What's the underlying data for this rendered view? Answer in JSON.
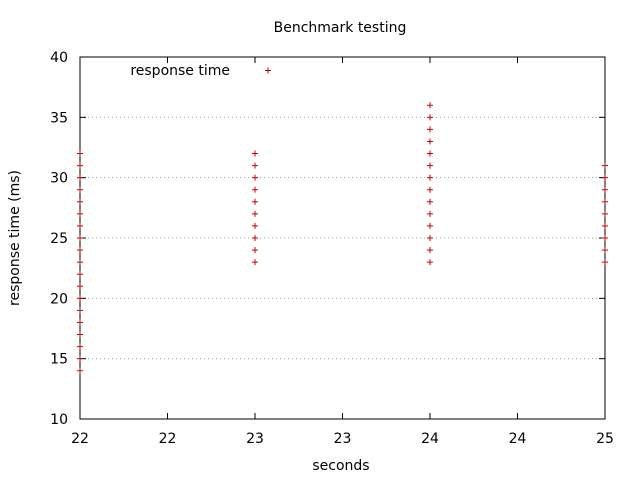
{
  "chart_data": {
    "type": "scatter",
    "title": "Benchmark testing",
    "xlabel": "seconds",
    "ylabel": "response time (ms)",
    "xlim": [
      22,
      25
    ],
    "ylim": [
      10,
      40
    ],
    "x_ticks": [
      22,
      22.5,
      23,
      23.5,
      24,
      24.5,
      25
    ],
    "x_tick_labels": [
      "22",
      "22",
      "23",
      "23",
      "24",
      "24",
      "25"
    ],
    "y_ticks": [
      10,
      15,
      20,
      25,
      30,
      35,
      40
    ],
    "y_tick_labels": [
      "10",
      "15",
      "20",
      "25",
      "30",
      "35",
      "40"
    ],
    "grid": "horizontal-dotted",
    "legend_position": "top-left",
    "marker": "+",
    "colors": {
      "series": "#cc0000",
      "grid": "#a0a0a0",
      "axis": "#000000"
    },
    "series": [
      {
        "name": "response time",
        "points": [
          [
            22,
            14
          ],
          [
            22,
            15
          ],
          [
            22,
            16
          ],
          [
            22,
            17
          ],
          [
            22,
            18
          ],
          [
            22,
            19
          ],
          [
            22,
            20
          ],
          [
            22,
            21
          ],
          [
            22,
            22
          ],
          [
            22,
            23
          ],
          [
            22,
            24
          ],
          [
            22,
            25
          ],
          [
            22,
            26
          ],
          [
            22,
            27
          ],
          [
            22,
            28
          ],
          [
            22,
            29
          ],
          [
            22,
            30
          ],
          [
            22,
            31
          ],
          [
            22,
            32
          ],
          [
            23,
            23
          ],
          [
            23,
            24
          ],
          [
            23,
            25
          ],
          [
            23,
            26
          ],
          [
            23,
            27
          ],
          [
            23,
            28
          ],
          [
            23,
            29
          ],
          [
            23,
            30
          ],
          [
            23,
            31
          ],
          [
            23,
            32
          ],
          [
            24,
            23
          ],
          [
            24,
            24
          ],
          [
            24,
            25
          ],
          [
            24,
            26
          ],
          [
            24,
            27
          ],
          [
            24,
            28
          ],
          [
            24,
            29
          ],
          [
            24,
            30
          ],
          [
            24,
            31
          ],
          [
            24,
            32
          ],
          [
            24,
            33
          ],
          [
            24,
            34
          ],
          [
            24,
            35
          ],
          [
            24,
            36
          ],
          [
            25,
            23
          ],
          [
            25,
            24
          ],
          [
            25,
            25
          ],
          [
            25,
            26
          ],
          [
            25,
            27
          ],
          [
            25,
            28
          ],
          [
            25,
            29
          ],
          [
            25,
            30
          ],
          [
            25,
            31
          ]
        ]
      }
    ]
  }
}
